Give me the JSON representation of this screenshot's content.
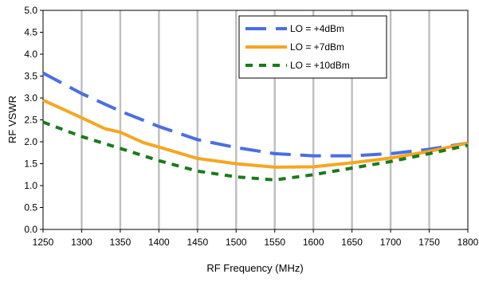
{
  "chart_data": {
    "type": "line",
    "title": "",
    "xlabel": "RF Frequency (MHz)",
    "ylabel": "RF VSWR",
    "xlim": [
      1250,
      1800
    ],
    "ylim": [
      0.0,
      5.0
    ],
    "x_ticks": [
      "1250",
      "1300",
      "1350",
      "1400",
      "1450",
      "1500",
      "1550",
      "1600",
      "1650",
      "1700",
      "1750",
      "1800"
    ],
    "y_ticks": [
      "0.0",
      "0.5",
      "1.0",
      "1.5",
      "2.0",
      "2.5",
      "3.0",
      "3.5",
      "4.0",
      "4.5",
      "5.0"
    ],
    "grid": "vertical",
    "legend_position": "top-right",
    "series": [
      {
        "name": "LO = +4dBm",
        "color": "#4a6fe0",
        "style": "long-dash",
        "x": [
          1250,
          1300,
          1350,
          1400,
          1450,
          1500,
          1550,
          1600,
          1650,
          1700,
          1750,
          1800
        ],
        "y": [
          3.57,
          3.1,
          2.7,
          2.35,
          2.05,
          1.87,
          1.73,
          1.68,
          1.68,
          1.73,
          1.83,
          1.97
        ]
      },
      {
        "name": "LO = +7dBm",
        "color": "#f5a623",
        "style": "solid",
        "x": [
          1250,
          1300,
          1330,
          1350,
          1380,
          1400,
          1450,
          1500,
          1550,
          1600,
          1650,
          1700,
          1750,
          1800
        ],
        "y": [
          2.95,
          2.55,
          2.3,
          2.22,
          1.98,
          1.88,
          1.62,
          1.5,
          1.42,
          1.43,
          1.52,
          1.63,
          1.78,
          1.97
        ]
      },
      {
        "name": "LO = +10dBm",
        "color": "#1a7a1a",
        "style": "short-dash",
        "x": [
          1250,
          1300,
          1350,
          1400,
          1450,
          1500,
          1550,
          1600,
          1650,
          1700,
          1750,
          1800
        ],
        "y": [
          2.45,
          2.12,
          1.85,
          1.57,
          1.33,
          1.2,
          1.13,
          1.25,
          1.4,
          1.55,
          1.73,
          1.92
        ]
      }
    ]
  }
}
